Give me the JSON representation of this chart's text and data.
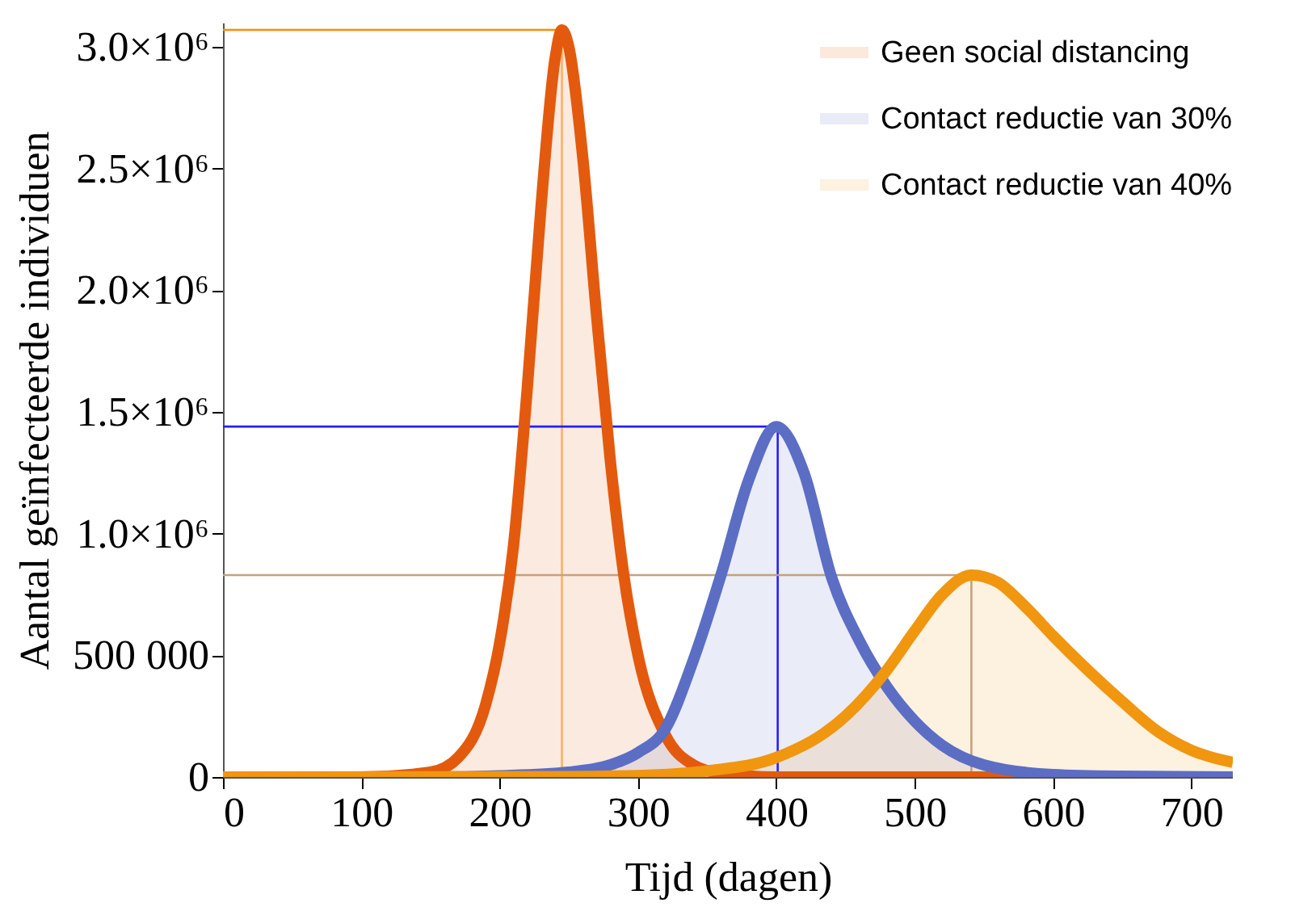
{
  "chart_data": {
    "type": "area",
    "xlabel": "Tijd (dagen)",
    "ylabel": "Aantal geïnfecteerde individuen",
    "xlim": [
      0,
      730
    ],
    "ylim": [
      0,
      3100000
    ],
    "xticks": [
      0,
      100,
      200,
      300,
      400,
      500,
      600,
      700
    ],
    "yticks": [
      0,
      {
        "value": 500000,
        "label": "500 000"
      },
      {
        "value": 1000000,
        "label": "1.0×10⁶"
      },
      {
        "value": 1500000,
        "label": "1.5×10⁶"
      },
      {
        "value": 2000000,
        "label": "2.0×10⁶"
      },
      {
        "value": 2500000,
        "label": "2.5×10⁶"
      },
      {
        "value": 3000000,
        "label": "3.0×10⁶"
      }
    ],
    "legend": "top right",
    "grid": false,
    "series": [
      {
        "name": "Geen social distancing",
        "color": "#e35a0e",
        "x": [
          0,
          100,
          150,
          170,
          190,
          200,
          210,
          220,
          230,
          240,
          245,
          250,
          260,
          270,
          280,
          290,
          300,
          320,
          340,
          360,
          400,
          500,
          600,
          730
        ],
        "values": [
          0,
          0,
          20000,
          80000,
          300000,
          550000,
          950000,
          1600000,
          2350000,
          2950000,
          3070000,
          3000000,
          2550000,
          1900000,
          1300000,
          820000,
          500000,
          170000,
          50000,
          15000,
          0,
          0,
          0,
          0
        ]
      },
      {
        "name": "Contact reductie van 30%",
        "color": "#5b6ec4",
        "x": [
          0,
          150,
          200,
          250,
          280,
          300,
          320,
          340,
          360,
          380,
          400,
          420,
          440,
          460,
          480,
          500,
          520,
          550,
          600,
          650,
          730
        ],
        "values": [
          0,
          0,
          5000,
          20000,
          50000,
          100000,
          200000,
          480000,
          830000,
          1220000,
          1440000,
          1250000,
          820000,
          560000,
          370000,
          230000,
          130000,
          50000,
          10000,
          3000,
          0
        ]
      },
      {
        "name": "Contact reductie van 40%",
        "color": "#f0960f",
        "x": [
          0,
          250,
          300,
          350,
          400,
          450,
          480,
          500,
          520,
          541,
          560,
          580,
          600,
          625,
          650,
          675,
          700,
          730
        ],
        "values": [
          0,
          2000,
          6000,
          25000,
          80000,
          250000,
          440000,
          600000,
          750000,
          830000,
          800000,
          700000,
          580000,
          440000,
          310000,
          190000,
          110000,
          60000
        ]
      }
    ],
    "ref_lines": [
      {
        "axis": "x",
        "value": 245,
        "color": "#ffb060"
      },
      {
        "axis": "y",
        "value": 3070000,
        "color": "#ff8c00"
      },
      {
        "axis": "x",
        "value": 401,
        "color": "#2020ff"
      },
      {
        "axis": "y",
        "value": 1440000,
        "color": "#2020ff"
      },
      {
        "axis": "x",
        "value": 541,
        "color": "#c8a07a"
      },
      {
        "axis": "y",
        "value": 830000,
        "color": "#c8a07a"
      }
    ]
  }
}
